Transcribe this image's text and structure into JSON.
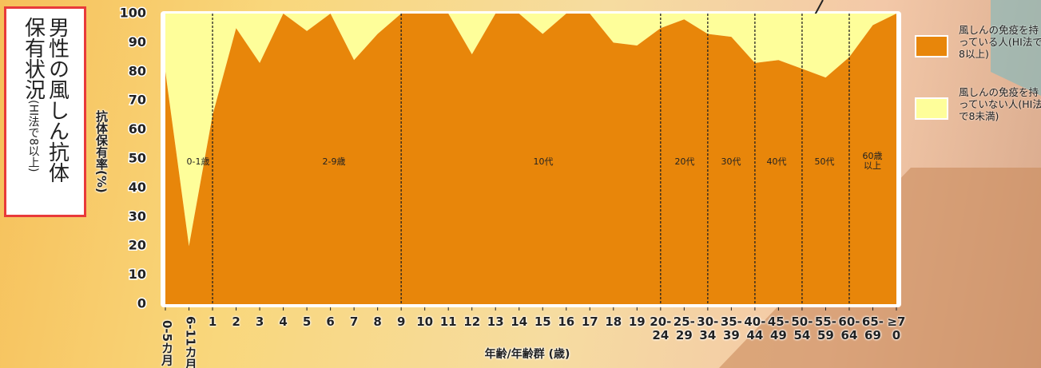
{
  "chart_data": {
    "type": "area",
    "title": "男性の風しん抗体保有状況",
    "title_note": "(HI法で8以上)",
    "y_label": "抗体保有率(%)",
    "x_label": "年齢/年齢群 (歳)",
    "categories": [
      "0-5カ月",
      "6-11カ月",
      "1",
      "2",
      "3",
      "4",
      "5",
      "6",
      "7",
      "8",
      "9",
      "10",
      "11",
      "12",
      "13",
      "14",
      "15",
      "16",
      "17",
      "18",
      "19",
      "20-24",
      "25-29",
      "30-34",
      "35-39",
      "40-44",
      "45-49",
      "50-54",
      "55-59",
      "60-64",
      "65-69",
      "≥70"
    ],
    "series": [
      {
        "name": "風しんの免疫を持っている人(HI法で8以上)",
        "color": "#e8860a",
        "values": [
          80,
          20,
          65,
          95,
          83,
          100,
          94,
          100,
          84,
          93,
          100,
          100,
          100,
          86,
          100,
          100,
          93,
          100,
          100,
          90,
          89,
          95,
          98,
          93,
          92,
          83,
          84,
          81,
          78,
          85,
          96,
          100
        ]
      },
      {
        "name": "風しんの免疫を持っていない人(HI法で8未満)",
        "color": "#fefe9a",
        "values": [
          20,
          80,
          35,
          5,
          17,
          0,
          6,
          0,
          16,
          7,
          0,
          0,
          0,
          14,
          0,
          0,
          7,
          0,
          0,
          10,
          11,
          5,
          2,
          7,
          8,
          17,
          16,
          19,
          22,
          15,
          4,
          0
        ]
      }
    ],
    "ylim": [
      0,
      100
    ],
    "yticks": [
      0,
      10,
      20,
      30,
      40,
      50,
      60,
      70,
      80,
      90,
      100
    ],
    "groups": [
      "0-1歳",
      "2-9歳",
      "10代",
      "20代",
      "30代",
      "40代",
      "50代",
      "60歳以上"
    ]
  }
}
